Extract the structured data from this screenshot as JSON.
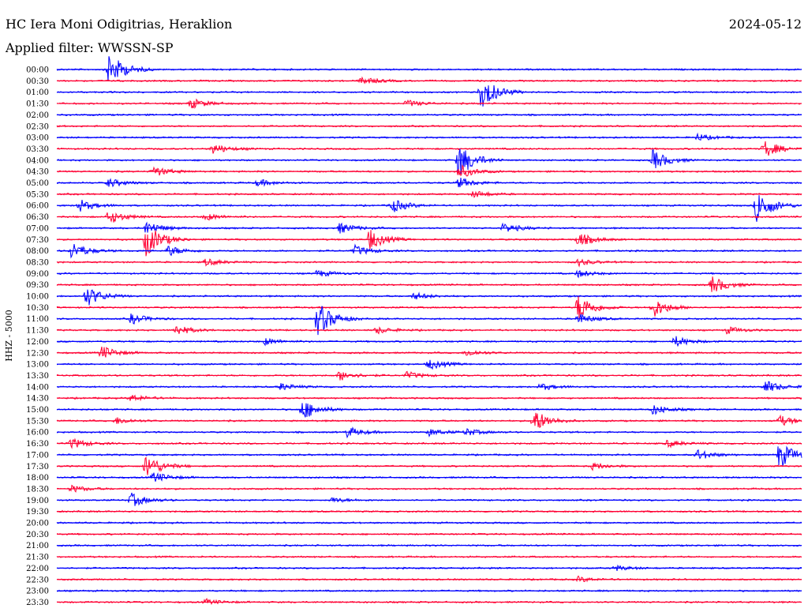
{
  "header": {
    "station": "HC Iera Moni Odigitrias, Heraklion",
    "date": "2024-05-12",
    "filter_label": "Applied filter: WWSSN-SP"
  },
  "chart_data": {
    "type": "line",
    "title": "HC Iera Moni Odigitrias, Heraklion",
    "ylabel": "HHZ - 5000",
    "xlabel": "",
    "grid": false,
    "legend": "none",
    "colors": [
      "#0000ff",
      "#ff0033"
    ],
    "rows": [
      {
        "label": "00:00",
        "events": [
          [
            0.07,
            1.0
          ]
        ]
      },
      {
        "label": "00:30",
        "events": [
          [
            0.41,
            0.25
          ]
        ]
      },
      {
        "label": "01:00",
        "events": [
          [
            0.57,
            1.0
          ]
        ]
      },
      {
        "label": "01:30",
        "events": [
          [
            0.18,
            0.3
          ],
          [
            0.47,
            0.2
          ]
        ]
      },
      {
        "label": "02:00",
        "events": []
      },
      {
        "label": "02:30",
        "events": []
      },
      {
        "label": "03:00",
        "events": [
          [
            0.86,
            0.2
          ]
        ]
      },
      {
        "label": "03:30",
        "events": [
          [
            0.21,
            0.3
          ],
          [
            0.95,
            0.5
          ]
        ]
      },
      {
        "label": "04:00",
        "events": [
          [
            0.54,
            1.0
          ],
          [
            0.8,
            0.6
          ]
        ]
      },
      {
        "label": "04:30",
        "events": [
          [
            0.13,
            0.3
          ],
          [
            0.54,
            0.4
          ]
        ]
      },
      {
        "label": "05:00",
        "events": [
          [
            0.07,
            0.25
          ],
          [
            0.27,
            0.2
          ],
          [
            0.54,
            0.3
          ]
        ]
      },
      {
        "label": "05:30",
        "events": [
          [
            0.56,
            0.2
          ]
        ]
      },
      {
        "label": "06:00",
        "events": [
          [
            0.03,
            0.35
          ],
          [
            0.45,
            0.4
          ],
          [
            0.94,
            1.0
          ]
        ]
      },
      {
        "label": "06:30",
        "events": [
          [
            0.07,
            0.4
          ],
          [
            0.2,
            0.2
          ]
        ]
      },
      {
        "label": "07:00",
        "events": [
          [
            0.12,
            0.4
          ],
          [
            0.38,
            0.3
          ],
          [
            0.6,
            0.3
          ]
        ]
      },
      {
        "label": "07:30",
        "events": [
          [
            0.12,
            1.0
          ],
          [
            0.42,
            0.6
          ],
          [
            0.7,
            0.4
          ]
        ]
      },
      {
        "label": "08:00",
        "events": [
          [
            0.02,
            0.5
          ],
          [
            0.15,
            0.3
          ],
          [
            0.4,
            0.3
          ]
        ]
      },
      {
        "label": "08:30",
        "events": [
          [
            0.2,
            0.2
          ],
          [
            0.7,
            0.2
          ]
        ]
      },
      {
        "label": "09:00",
        "events": [
          [
            0.35,
            0.2
          ],
          [
            0.7,
            0.2
          ]
        ]
      },
      {
        "label": "09:30",
        "events": [
          [
            0.88,
            0.5
          ]
        ]
      },
      {
        "label": "10:00",
        "events": [
          [
            0.04,
            0.6
          ],
          [
            0.48,
            0.2
          ]
        ]
      },
      {
        "label": "10:30",
        "events": [
          [
            0.7,
            0.8
          ],
          [
            0.8,
            0.6
          ]
        ]
      },
      {
        "label": "11:00",
        "events": [
          [
            0.35,
            1.0
          ],
          [
            0.1,
            0.3
          ],
          [
            0.7,
            0.3
          ]
        ]
      },
      {
        "label": "11:30",
        "events": [
          [
            0.16,
            0.3
          ],
          [
            0.43,
            0.2
          ],
          [
            0.9,
            0.2
          ]
        ]
      },
      {
        "label": "12:00",
        "events": [
          [
            0.28,
            0.2
          ],
          [
            0.83,
            0.3
          ]
        ]
      },
      {
        "label": "12:30",
        "events": [
          [
            0.06,
            0.4
          ],
          [
            0.55,
            0.2
          ]
        ]
      },
      {
        "label": "13:00",
        "events": [
          [
            0.5,
            0.3
          ]
        ]
      },
      {
        "label": "13:30",
        "events": [
          [
            0.38,
            0.3
          ],
          [
            0.47,
            0.2
          ]
        ]
      },
      {
        "label": "14:00",
        "events": [
          [
            0.3,
            0.2
          ],
          [
            0.65,
            0.2
          ],
          [
            0.95,
            0.4
          ]
        ]
      },
      {
        "label": "14:30",
        "events": [
          [
            0.1,
            0.2
          ]
        ]
      },
      {
        "label": "15:00",
        "events": [
          [
            0.33,
            0.6
          ],
          [
            0.8,
            0.3
          ]
        ]
      },
      {
        "label": "15:30",
        "events": [
          [
            0.08,
            0.2
          ],
          [
            0.64,
            0.7
          ],
          [
            0.97,
            0.3
          ]
        ]
      },
      {
        "label": "16:00",
        "events": [
          [
            0.39,
            0.3
          ],
          [
            0.5,
            0.2
          ],
          [
            0.55,
            0.2
          ]
        ]
      },
      {
        "label": "16:30",
        "events": [
          [
            0.02,
            0.3
          ],
          [
            0.82,
            0.2
          ]
        ]
      },
      {
        "label": "17:00",
        "events": [
          [
            0.86,
            0.3
          ],
          [
            0.97,
            0.8
          ]
        ]
      },
      {
        "label": "17:30",
        "events": [
          [
            0.12,
            0.7
          ],
          [
            0.72,
            0.2
          ]
        ]
      },
      {
        "label": "18:00",
        "events": [
          [
            0.13,
            0.3
          ]
        ]
      },
      {
        "label": "18:30",
        "events": [
          [
            0.02,
            0.2
          ]
        ]
      },
      {
        "label": "19:00",
        "events": [
          [
            0.1,
            0.4
          ],
          [
            0.37,
            0.15
          ]
        ]
      },
      {
        "label": "19:30",
        "events": []
      },
      {
        "label": "20:00",
        "events": []
      },
      {
        "label": "20:30",
        "events": []
      },
      {
        "label": "21:00",
        "events": []
      },
      {
        "label": "21:30",
        "events": []
      },
      {
        "label": "22:00",
        "events": [
          [
            0.75,
            0.15
          ]
        ]
      },
      {
        "label": "22:30",
        "events": [
          [
            0.7,
            0.15
          ]
        ]
      },
      {
        "label": "23:00",
        "events": []
      },
      {
        "label": "23:30",
        "events": [
          [
            0.2,
            0.15
          ]
        ]
      }
    ]
  }
}
